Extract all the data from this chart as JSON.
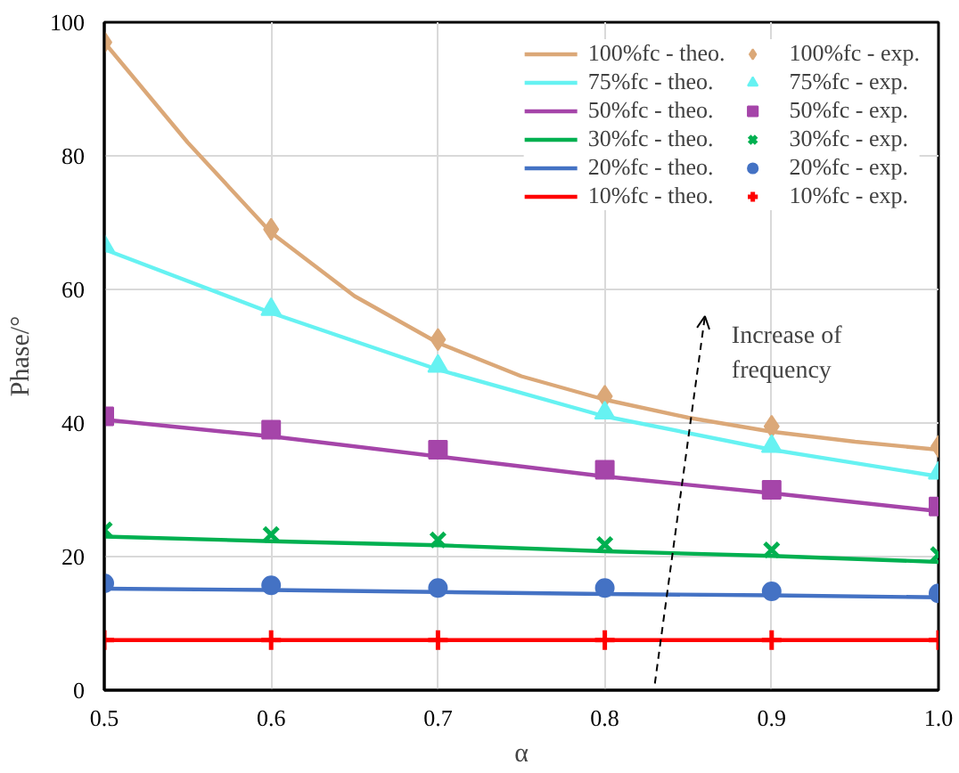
{
  "chart_data": {
    "type": "line",
    "xlabel": "α",
    "ylabel": "Phase/°",
    "xlim": [
      0.5,
      1.0
    ],
    "ylim": [
      0,
      100
    ],
    "xticks": [
      0.5,
      0.6,
      0.7,
      0.8,
      0.9,
      {
        "value": 1.0,
        "label": "1.0"
      }
    ],
    "yticks": [
      0,
      20,
      40,
      60,
      80,
      100
    ],
    "grid": true,
    "legend": "top right",
    "annotations": [
      "Increase of frequency"
    ],
    "series": [
      {
        "name": "100%fc - theo.",
        "color": "#dba878",
        "x": [
          0.5,
          0.55,
          0.6,
          0.65,
          0.7,
          0.75,
          0.8,
          0.85,
          0.9,
          0.95,
          1.0
        ],
        "values": [
          97,
          82,
          68.5,
          59,
          52,
          47,
          43.5,
          40.8,
          38.7,
          37.2,
          36
        ]
      },
      {
        "type": "scatter",
        "name": "100%fc - exp.",
        "color": "#dba878",
        "marker": "diamond",
        "x": [
          0.5,
          0.6,
          0.7,
          0.8,
          0.9,
          1.0
        ],
        "values": [
          97,
          69,
          52.5,
          44,
          39.5,
          36.5
        ]
      },
      {
        "name": "75%fc - theo.",
        "color": "#66f2f2",
        "x": [
          0.5,
          0.6,
          0.7,
          0.8,
          0.9,
          1.0
        ],
        "values": [
          66,
          56.5,
          48,
          41,
          36,
          32
        ]
      },
      {
        "type": "scatter",
        "name": "75%fc - exp.",
        "color": "#66f2f2",
        "marker": "triangle",
        "x": [
          0.5,
          0.6,
          0.7,
          0.8,
          0.9,
          1.0
        ],
        "values": [
          66.5,
          57,
          48.5,
          41.5,
          36.5,
          32.5
        ]
      },
      {
        "name": "50%fc - theo.",
        "color": "#a545a9",
        "x": [
          0.5,
          0.6,
          0.7,
          0.8,
          0.9,
          1.0
        ],
        "values": [
          40.5,
          38,
          35,
          32,
          29.5,
          26.8
        ]
      },
      {
        "type": "scatter",
        "name": "50%fc - exp.",
        "color": "#a545a9",
        "marker": "square",
        "x": [
          0.5,
          0.6,
          0.7,
          0.8,
          0.9,
          1.0
        ],
        "values": [
          41,
          39,
          36,
          33,
          30,
          27.5
        ]
      },
      {
        "name": "30%fc - theo.",
        "color": "#00b050",
        "x": [
          0.5,
          0.6,
          0.7,
          0.8,
          0.9,
          1.0
        ],
        "values": [
          23,
          22.3,
          21.7,
          20.8,
          20.1,
          19.2
        ]
      },
      {
        "type": "scatter",
        "name": "30%fc - exp.",
        "color": "#00b050",
        "marker": "x",
        "x": [
          0.5,
          0.6,
          0.7,
          0.8,
          0.9,
          1.0
        ],
        "values": [
          24,
          23.3,
          22.5,
          21.8,
          21,
          20.3
        ]
      },
      {
        "name": "20%fc - theo.",
        "color": "#4472c4",
        "x": [
          0.5,
          0.6,
          0.7,
          0.8,
          0.9,
          1.0
        ],
        "values": [
          15.2,
          15,
          14.7,
          14.4,
          14.2,
          13.9
        ]
      },
      {
        "type": "scatter",
        "name": "20%fc - exp.",
        "color": "#4472c4",
        "marker": "circle",
        "x": [
          0.5,
          0.6,
          0.7,
          0.8,
          0.9,
          1.0
        ],
        "values": [
          16,
          15.7,
          15.3,
          15.3,
          14.8,
          14.5
        ]
      },
      {
        "name": "10%fc - theo.",
        "color": "#ff0000",
        "x": [
          0.5,
          0.6,
          0.7,
          0.8,
          0.9,
          1.0
        ],
        "values": [
          7.5,
          7.5,
          7.5,
          7.5,
          7.5,
          7.5
        ]
      },
      {
        "type": "scatter",
        "name": "10%fc - exp.",
        "color": "#ff0000",
        "marker": "cross",
        "x": [
          0.5,
          0.6,
          0.7,
          0.8,
          0.9,
          1.0
        ],
        "values": [
          7.5,
          7.5,
          7.5,
          7.5,
          7.5,
          7.5
        ]
      }
    ]
  }
}
